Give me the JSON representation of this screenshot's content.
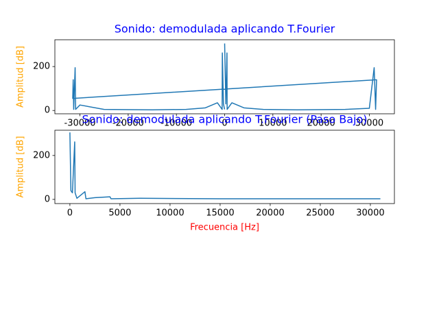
{
  "chart_data": [
    {
      "type": "line",
      "title": "Sonido: demodulada aplicando T.Fourier",
      "ylabel": "Amplitud [dB]",
      "xlim": [
        -35200,
        35200
      ],
      "ylim": [
        -15,
        322
      ],
      "xticks": [
        -30000,
        -20000,
        -10000,
        0,
        10000,
        20000,
        30000
      ],
      "yticks": [
        0,
        200
      ],
      "series": [
        {
          "color": "#1f77b4",
          "x": [
            0,
            250,
            480,
            520,
            1500,
            4000,
            8000,
            15000,
            25000,
            30000,
            31000,
            31300,
            31500,
            -31500,
            -31400,
            -31300,
            -31000,
            -30900,
            -30000,
            -25000,
            -15000,
            -8000,
            -4000,
            -1500,
            -520,
            -480,
            -250,
            -10
          ],
          "values": [
            305,
            30,
            262,
            5,
            35,
            12,
            5,
            3,
            5,
            10,
            195,
            5,
            140,
            55,
            140,
            5,
            195,
            5,
            25,
            5,
            3,
            5,
            12,
            35,
            5,
            262,
            30,
            5
          ]
        }
      ]
    },
    {
      "type": "line",
      "title": "Sonido: demodulada aplicando T.Fourier (Paso Bajo)",
      "ylabel": "Amplitud [dB]",
      "xlabel": "Frecuencia [Hz]",
      "xlim": [
        -1500,
        32400
      ],
      "ylim": [
        -19,
        315
      ],
      "xticks": [
        0,
        5000,
        10000,
        15000,
        20000,
        25000,
        30000
      ],
      "yticks": [
        0,
        200
      ],
      "series": [
        {
          "color": "#1f77b4",
          "x": [
            0,
            100,
            250,
            480,
            520,
            700,
            1500,
            1600,
            2500,
            4000,
            4100,
            7000,
            15000,
            25000,
            31000
          ],
          "values": [
            305,
            40,
            30,
            262,
            30,
            5,
            35,
            3,
            8,
            12,
            3,
            5,
            3,
            3,
            3
          ]
        }
      ]
    }
  ]
}
